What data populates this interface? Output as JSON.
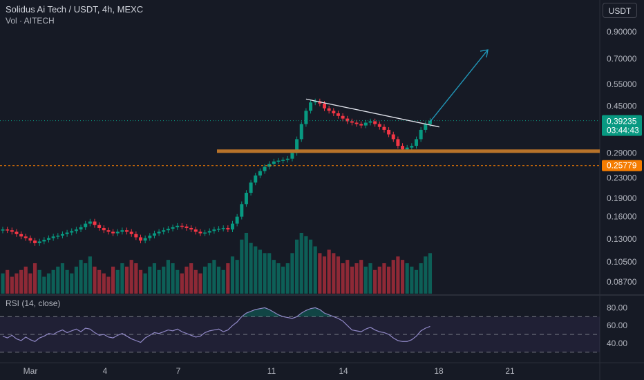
{
  "header": {
    "title": "Solidus Ai Tech / USDT, 4h, MEXC",
    "volume_label": "Vol · AITECH",
    "currency_button": "USDT"
  },
  "rsi_label": "RSI (14, close)",
  "price_tag": {
    "value": "0.39235",
    "countdown": "03:44:43",
    "color": "#089981"
  },
  "level_tag": {
    "value": "0.25779",
    "color": "#f57c00"
  },
  "colors": {
    "up": "#089981",
    "down": "#f23645",
    "support": "#b8732a",
    "arrow": "#2196b8",
    "rsi": "#9189c7"
  },
  "chart_data": [
    {
      "type": "candlestick",
      "title": "Solidus Ai Tech / USDT, 4h, MEXC",
      "y_scale": "log",
      "y_ticks": [
        0.087,
        0.105,
        0.13,
        0.16,
        0.19,
        0.23,
        0.29,
        0.45,
        0.55,
        0.7,
        0.9
      ],
      "y_tick_labels": [
        "0.08700",
        "0.10500",
        "0.13000",
        "0.16000",
        "0.19000",
        "0.23000",
        "0.29000",
        "0.45000",
        "0.55000",
        "0.70000",
        "0.90000"
      ],
      "x_tick_labels": [
        "Mar",
        "4",
        "7",
        "11",
        "14",
        "18",
        "21"
      ],
      "close_series": [
        0.142,
        0.141,
        0.139,
        0.136,
        0.133,
        0.131,
        0.128,
        0.125,
        0.127,
        0.129,
        0.131,
        0.133,
        0.134,
        0.136,
        0.138,
        0.14,
        0.142,
        0.145,
        0.15,
        0.153,
        0.148,
        0.144,
        0.141,
        0.139,
        0.137,
        0.139,
        0.141,
        0.139,
        0.136,
        0.132,
        0.128,
        0.131,
        0.134,
        0.137,
        0.139,
        0.141,
        0.143,
        0.145,
        0.147,
        0.146,
        0.144,
        0.142,
        0.139,
        0.137,
        0.138,
        0.14,
        0.142,
        0.143,
        0.144,
        0.142,
        0.15,
        0.16,
        0.18,
        0.2,
        0.22,
        0.235,
        0.245,
        0.255,
        0.262,
        0.268,
        0.27,
        0.272,
        0.275,
        0.29,
        0.33,
        0.38,
        0.43,
        0.465,
        0.47,
        0.46,
        0.44,
        0.43,
        0.42,
        0.41,
        0.4,
        0.39,
        0.385,
        0.38,
        0.375,
        0.385,
        0.39,
        0.38,
        0.37,
        0.36,
        0.345,
        0.33,
        0.31,
        0.3,
        0.305,
        0.31,
        0.33,
        0.36,
        0.38,
        0.392
      ],
      "annotations": {
        "support_level": 0.295,
        "dashed_level": 0.25779,
        "last_price": 0.39235,
        "trendline": [
          [
            66,
            0.48
          ],
          [
            95,
            0.37
          ]
        ],
        "arrow_to": 0.76
      },
      "volume_series": [
        6,
        7,
        5,
        6,
        7,
        8,
        6,
        9,
        7,
        5,
        6,
        7,
        8,
        9,
        7,
        6,
        8,
        10,
        9,
        11,
        8,
        7,
        6,
        5,
        8,
        7,
        9,
        8,
        10,
        9,
        7,
        6,
        8,
        9,
        7,
        8,
        10,
        9,
        7,
        6,
        8,
        9,
        7,
        6,
        8,
        9,
        10,
        8,
        7,
        9,
        11,
        10,
        16,
        18,
        15,
        14,
        13,
        12,
        12,
        10,
        9,
        8,
        9,
        12,
        16,
        18,
        17,
        16,
        14,
        12,
        11,
        13,
        12,
        11,
        9,
        10,
        8,
        9,
        10,
        8,
        9,
        7,
        8,
        9,
        8,
        10,
        11,
        10,
        9,
        8,
        7,
        9,
        11,
        12
      ]
    },
    {
      "type": "line",
      "title": "RSI (14, close)",
      "y_ticks": [
        40,
        60,
        80
      ],
      "y_tick_labels": [
        "40.00",
        "60.00",
        "80.00"
      ],
      "bands": [
        30,
        50,
        70
      ],
      "values": [
        48,
        46,
        49,
        45,
        43,
        47,
        44,
        42,
        46,
        48,
        51,
        50,
        53,
        55,
        52,
        54,
        56,
        53,
        57,
        56,
        52,
        49,
        50,
        47,
        46,
        49,
        51,
        48,
        45,
        43,
        41,
        46,
        49,
        52,
        51,
        53,
        55,
        54,
        56,
        53,
        51,
        49,
        47,
        48,
        52,
        54,
        55,
        56,
        53,
        55,
        60,
        64,
        70,
        74,
        76,
        78,
        79,
        80,
        78,
        75,
        72,
        70,
        69,
        68,
        70,
        74,
        77,
        79,
        80,
        78,
        74,
        72,
        70,
        68,
        65,
        60,
        55,
        54,
        53,
        56,
        58,
        55,
        53,
        52,
        50,
        46,
        43,
        42,
        42,
        44,
        48,
        54,
        57,
        59
      ]
    }
  ]
}
